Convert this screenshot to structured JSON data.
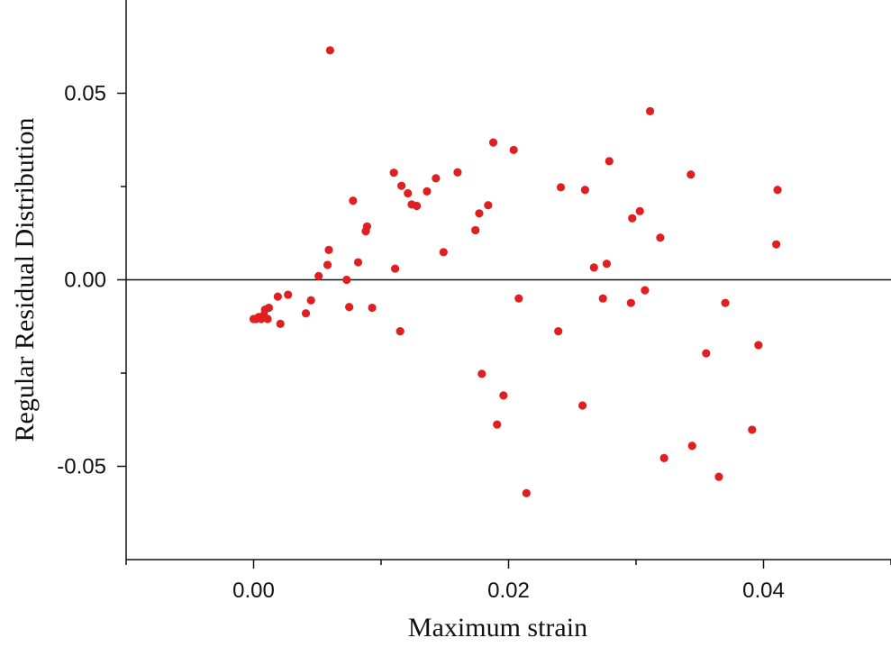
{
  "chart_data": {
    "type": "scatter",
    "title": "",
    "xlabel": "Maximum strain",
    "ylabel": "Regular Residual Distribution",
    "xlim": [
      -0.01,
      0.05
    ],
    "ylim": [
      -0.075,
      0.075
    ],
    "x_ticks": [
      0.0,
      0.02,
      0.04
    ],
    "x_tick_labels": [
      "0.00",
      "0.02",
      "0.04"
    ],
    "x_minor_ticks": [
      -0.01,
      0.01,
      0.03,
      0.05
    ],
    "y_ticks": [
      0.05,
      0.0,
      -0.05
    ],
    "y_tick_labels": [
      "0.05",
      "0.00",
      "-0.05"
    ],
    "y_minor_ticks": [
      0.025,
      -0.025
    ],
    "reference_line_y": 0.0,
    "grid": false,
    "legend": "none",
    "point_color": "#e02020",
    "points": [
      {
        "x": 0.0,
        "y": -0.0105
      },
      {
        "x": 0.0002,
        "y": -0.0105
      },
      {
        "x": 0.0004,
        "y": -0.01
      },
      {
        "x": 0.0006,
        "y": -0.0105
      },
      {
        "x": 0.0008,
        "y": -0.0095
      },
      {
        "x": 0.0009,
        "y": -0.008
      },
      {
        "x": 0.0011,
        "y": -0.0105
      },
      {
        "x": 0.0012,
        "y": -0.0075
      },
      {
        "x": 0.0019,
        "y": -0.0045
      },
      {
        "x": 0.0021,
        "y": -0.0118
      },
      {
        "x": 0.0027,
        "y": -0.004
      },
      {
        "x": 0.0041,
        "y": -0.009
      },
      {
        "x": 0.0045,
        "y": -0.0055
      },
      {
        "x": 0.0051,
        "y": 0.001
      },
      {
        "x": 0.0058,
        "y": 0.004
      },
      {
        "x": 0.0059,
        "y": 0.008
      },
      {
        "x": 0.006,
        "y": 0.0615
      },
      {
        "x": 0.0073,
        "y": 0.0
      },
      {
        "x": 0.0075,
        "y": -0.0073
      },
      {
        "x": 0.0078,
        "y": 0.0212
      },
      {
        "x": 0.0082,
        "y": 0.0047
      },
      {
        "x": 0.0088,
        "y": 0.013
      },
      {
        "x": 0.0089,
        "y": 0.0143
      },
      {
        "x": 0.0093,
        "y": -0.0075
      },
      {
        "x": 0.011,
        "y": 0.0287
      },
      {
        "x": 0.0111,
        "y": 0.003
      },
      {
        "x": 0.0115,
        "y": -0.0138
      },
      {
        "x": 0.0116,
        "y": 0.0252
      },
      {
        "x": 0.0121,
        "y": 0.0232
      },
      {
        "x": 0.0124,
        "y": 0.0202
      },
      {
        "x": 0.0128,
        "y": 0.0198
      },
      {
        "x": 0.0136,
        "y": 0.0237
      },
      {
        "x": 0.0143,
        "y": 0.0272
      },
      {
        "x": 0.0149,
        "y": 0.0074
      },
      {
        "x": 0.016,
        "y": 0.0288
      },
      {
        "x": 0.0174,
        "y": 0.0133
      },
      {
        "x": 0.0177,
        "y": 0.0178
      },
      {
        "x": 0.0179,
        "y": -0.0252
      },
      {
        "x": 0.0184,
        "y": 0.02
      },
      {
        "x": 0.0188,
        "y": 0.0368
      },
      {
        "x": 0.0191,
        "y": -0.0388
      },
      {
        "x": 0.0196,
        "y": -0.031
      },
      {
        "x": 0.0204,
        "y": 0.0348
      },
      {
        "x": 0.0208,
        "y": -0.005
      },
      {
        "x": 0.0214,
        "y": -0.0572
      },
      {
        "x": 0.0239,
        "y": -0.0138
      },
      {
        "x": 0.0241,
        "y": 0.0248
      },
      {
        "x": 0.0258,
        "y": -0.0337
      },
      {
        "x": 0.026,
        "y": 0.0241
      },
      {
        "x": 0.0267,
        "y": 0.0033
      },
      {
        "x": 0.0274,
        "y": -0.005
      },
      {
        "x": 0.0277,
        "y": 0.0043
      },
      {
        "x": 0.0279,
        "y": 0.0318
      },
      {
        "x": 0.0296,
        "y": -0.0062
      },
      {
        "x": 0.0297,
        "y": 0.0165
      },
      {
        "x": 0.0303,
        "y": 0.0184
      },
      {
        "x": 0.0307,
        "y": -0.0028
      },
      {
        "x": 0.0311,
        "y": 0.0452
      },
      {
        "x": 0.0319,
        "y": 0.0113
      },
      {
        "x": 0.0322,
        "y": -0.0478
      },
      {
        "x": 0.0343,
        "y": 0.0282
      },
      {
        "x": 0.0344,
        "y": -0.0445
      },
      {
        "x": 0.0355,
        "y": -0.0197
      },
      {
        "x": 0.0365,
        "y": -0.0528
      },
      {
        "x": 0.037,
        "y": -0.0062
      },
      {
        "x": 0.0391,
        "y": -0.0402
      },
      {
        "x": 0.0396,
        "y": -0.0175
      },
      {
        "x": 0.041,
        "y": 0.0095
      },
      {
        "x": 0.0411,
        "y": 0.0241
      }
    ]
  }
}
